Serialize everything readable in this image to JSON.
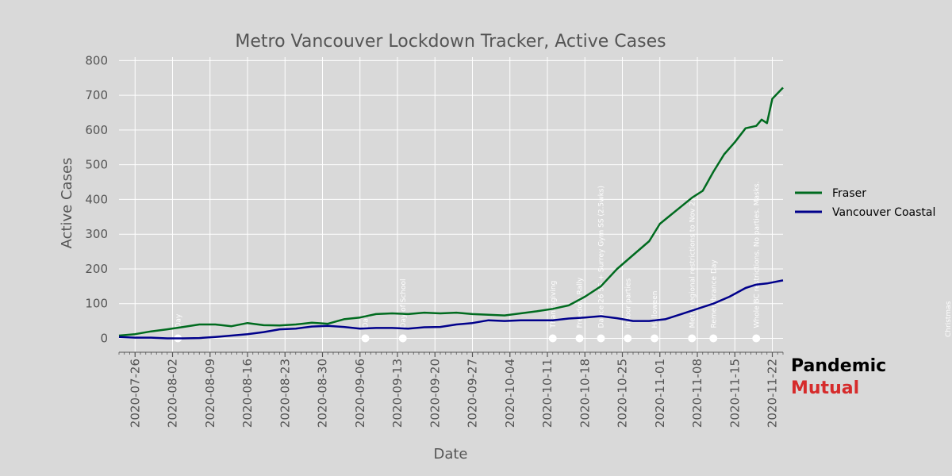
{
  "colors": {
    "background": "#d9d9d9",
    "grid": "#ffffff",
    "fraser": "#006b1f",
    "vancouver_coastal": "#00008b",
    "brand_primary": "#000000",
    "brand_accent": "#d62b2b"
  },
  "brand": {
    "line1": "Pandemic",
    "line2": "Mutual"
  },
  "chart_data": {
    "type": "line",
    "title": "Metro Vancouver Lockdown Tracker, Active Cases",
    "xlabel": "Date",
    "ylabel": "Active Cases",
    "xlim": [
      "2020-07-23",
      "2020-11-24"
    ],
    "ylim": [
      -40,
      810
    ],
    "yticks": [
      0,
      100,
      200,
      300,
      400,
      500,
      600,
      700,
      800
    ],
    "xticks": [
      "2020-07-26",
      "2020-08-02",
      "2020-08-09",
      "2020-08-16",
      "2020-08-23",
      "2020-08-30",
      "2020-09-06",
      "2020-09-13",
      "2020-09-20",
      "2020-09-27",
      "2020-10-04",
      "2020-10-11",
      "2020-10-18",
      "2020-10-25",
      "2020-11-01",
      "2020-11-08",
      "2020-11-15",
      "2020-11-22"
    ],
    "grid": true,
    "legend_position": "right",
    "series": [
      {
        "name": "Fraser",
        "points": [
          [
            "2020-07-23",
            8
          ],
          [
            "2020-07-26",
            12
          ],
          [
            "2020-07-29",
            20
          ],
          [
            "2020-08-01",
            26
          ],
          [
            "2020-08-04",
            33
          ],
          [
            "2020-08-07",
            40
          ],
          [
            "2020-08-10",
            40
          ],
          [
            "2020-08-13",
            35
          ],
          [
            "2020-08-16",
            44
          ],
          [
            "2020-08-19",
            38
          ],
          [
            "2020-08-22",
            37
          ],
          [
            "2020-08-25",
            40
          ],
          [
            "2020-08-28",
            45
          ],
          [
            "2020-08-31",
            42
          ],
          [
            "2020-09-03",
            55
          ],
          [
            "2020-09-06",
            60
          ],
          [
            "2020-09-09",
            70
          ],
          [
            "2020-09-12",
            72
          ],
          [
            "2020-09-15",
            70
          ],
          [
            "2020-09-18",
            74
          ],
          [
            "2020-09-21",
            72
          ],
          [
            "2020-09-24",
            74
          ],
          [
            "2020-09-27",
            70
          ],
          [
            "2020-09-30",
            68
          ],
          [
            "2020-10-03",
            66
          ],
          [
            "2020-10-06",
            72
          ],
          [
            "2020-10-09",
            78
          ],
          [
            "2020-10-12",
            85
          ],
          [
            "2020-10-15",
            95
          ],
          [
            "2020-10-18",
            120
          ],
          [
            "2020-10-21",
            150
          ],
          [
            "2020-10-24",
            200
          ],
          [
            "2020-10-27",
            240
          ],
          [
            "2020-10-30",
            280
          ],
          [
            "2020-11-01",
            330
          ],
          [
            "2020-11-03",
            355
          ],
          [
            "2020-11-05",
            380
          ],
          [
            "2020-11-07",
            405
          ],
          [
            "2020-11-09",
            425
          ],
          [
            "2020-11-11",
            480
          ],
          [
            "2020-11-13",
            530
          ],
          [
            "2020-11-15",
            565
          ],
          [
            "2020-11-17",
            605
          ],
          [
            "2020-11-19",
            612
          ],
          [
            "2020-11-20",
            630
          ],
          [
            "2020-11-21",
            620
          ],
          [
            "2020-11-22",
            690
          ],
          [
            "2020-11-24",
            722
          ]
        ]
      },
      {
        "name": "Vancouver Coastal",
        "points": [
          [
            "2020-07-23",
            4
          ],
          [
            "2020-07-26",
            2
          ],
          [
            "2020-07-29",
            2
          ],
          [
            "2020-08-01",
            0
          ],
          [
            "2020-08-04",
            0
          ],
          [
            "2020-08-07",
            1
          ],
          [
            "2020-08-10",
            4
          ],
          [
            "2020-08-13",
            8
          ],
          [
            "2020-08-16",
            12
          ],
          [
            "2020-08-19",
            18
          ],
          [
            "2020-08-22",
            26
          ],
          [
            "2020-08-25",
            28
          ],
          [
            "2020-08-28",
            34
          ],
          [
            "2020-08-31",
            36
          ],
          [
            "2020-09-03",
            33
          ],
          [
            "2020-09-06",
            28
          ],
          [
            "2020-09-09",
            30
          ],
          [
            "2020-09-12",
            30
          ],
          [
            "2020-09-15",
            28
          ],
          [
            "2020-09-18",
            32
          ],
          [
            "2020-09-21",
            33
          ],
          [
            "2020-09-24",
            40
          ],
          [
            "2020-09-27",
            44
          ],
          [
            "2020-09-30",
            52
          ],
          [
            "2020-10-03",
            50
          ],
          [
            "2020-10-06",
            52
          ],
          [
            "2020-10-09",
            52
          ],
          [
            "2020-10-12",
            52
          ],
          [
            "2020-10-15",
            57
          ],
          [
            "2020-10-18",
            60
          ],
          [
            "2020-10-21",
            64
          ],
          [
            "2020-10-24",
            58
          ],
          [
            "2020-10-27",
            50
          ],
          [
            "2020-10-30",
            50
          ],
          [
            "2020-11-02",
            55
          ],
          [
            "2020-11-05",
            70
          ],
          [
            "2020-11-08",
            85
          ],
          [
            "2020-11-11",
            100
          ],
          [
            "2020-11-14",
            120
          ],
          [
            "2020-11-17",
            145
          ],
          [
            "2020-11-19",
            155
          ],
          [
            "2020-11-21",
            158
          ],
          [
            "2020-11-24",
            167
          ]
        ]
      }
    ],
    "events": [
      {
        "date": "2020-08-03",
        "label": "Day"
      },
      {
        "date": "2020-09-07",
        "label": "Day"
      },
      {
        "date": "2020-09-14",
        "label": "Day of School"
      },
      {
        "date": "2020-10-12",
        "label": "Thanksgiving"
      },
      {
        "date": "2020-10-17",
        "label": "Freedom Rally"
      },
      {
        "date": "2020-10-21",
        "label": "Dance 26 SS + Surrey Gym SS (2.5wks)"
      },
      {
        "date": "2020-10-26",
        "label": "indoor parties"
      },
      {
        "date": "2020-10-31",
        "label": "Halloween"
      },
      {
        "date": "2020-11-07",
        "label": "Metro regional restrictions to Nov 23"
      },
      {
        "date": "2020-11-11",
        "label": "Remembrance Day"
      },
      {
        "date": "2020-11-19",
        "label": "Whole BC restrictions. No parties. Masks."
      },
      {
        "date": "2020-12-25",
        "label": "Christmas"
      }
    ]
  }
}
